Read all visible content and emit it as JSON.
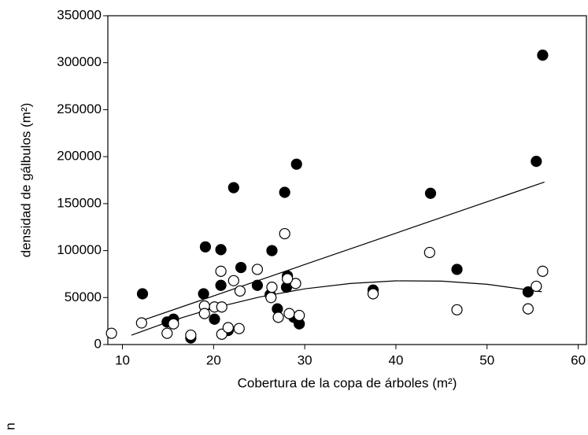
{
  "chart_data": {
    "type": "scatter",
    "xlabel": "Cobertura de la copa de árboles (m²)",
    "ylabel": "densidad de gálbulos (m²)",
    "annotation": "n",
    "xlim": [
      8.4,
      60.9
    ],
    "xticks": [
      10,
      20,
      30,
      40,
      50,
      60
    ],
    "ylim": [
      0,
      350000
    ],
    "yticks": [
      0,
      50000,
      100000,
      150000,
      200000,
      250000,
      300000,
      350000
    ],
    "series": [
      {
        "color": "#000000",
        "filled": true,
        "x": [
          12.2,
          14.9,
          15.6,
          17.5,
          18.9,
          19.1,
          20.1,
          20.8,
          20.8,
          21.6,
          22.2,
          23.0,
          24.8,
          27.8,
          26.2,
          26.4,
          27.0,
          29.1,
          28.1,
          28.0,
          28.8,
          29.4,
          37.5,
          43.8,
          46.7,
          54.5,
          55.4,
          56.1
        ],
        "values": [
          54000,
          24000,
          27000,
          7000,
          54000,
          104000,
          27000,
          101000,
          63000,
          15000,
          167000,
          82000,
          63000,
          162000,
          53000,
          100000,
          38000,
          192000,
          73000,
          61000,
          29000,
          22000,
          58000,
          161000,
          80000,
          56000,
          195000,
          308000
        ]
      },
      {
        "color": "#000000",
        "filled": false,
        "x": [
          8.8,
          12.1,
          14.9,
          15.6,
          17.5,
          19.0,
          19.0,
          20.1,
          20.8,
          20.9,
          20.9,
          21.6,
          22.2,
          22.9,
          22.8,
          24.8,
          27.8,
          26.4,
          26.3,
          27.1,
          28.3,
          29.4,
          29.0,
          28.1,
          37.5,
          43.7,
          46.7,
          54.5,
          55.4,
          56.1
        ],
        "values": [
          12000,
          23000,
          12000,
          22000,
          10000,
          41000,
          33000,
          40000,
          78000,
          40000,
          11000,
          18000,
          68000,
          57000,
          17000,
          80000,
          118000,
          61000,
          50000,
          29000,
          33000,
          31000,
          65000,
          70000,
          54000,
          98000,
          37000,
          38000,
          62000,
          78000
        ]
      }
    ],
    "lines": [
      {
        "color": "#000000",
        "x": [
          12,
          56.3
        ],
        "values": [
          25000,
          173000
        ]
      },
      {
        "color": "#000000",
        "x": [
          11,
          15,
          20,
          25,
          30,
          35,
          40,
          45,
          50,
          56
        ],
        "values": [
          10000,
          24000,
          38800,
          50500,
          59300,
          65000,
          67800,
          67500,
          64100,
          56200
        ]
      }
    ]
  }
}
